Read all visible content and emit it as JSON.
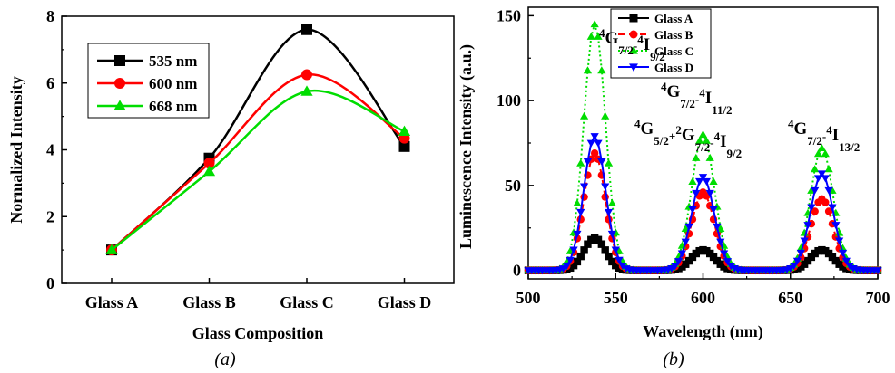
{
  "chart_data": [
    {
      "type": "line",
      "panel_caption": "(a)",
      "title": "",
      "xlabel": "Glass Composition",
      "ylabel": "Normalized Intensity",
      "categories": [
        "Glass A",
        "Glass B",
        "Glass C",
        "Glass D"
      ],
      "ylim": [
        0,
        8
      ],
      "yticks": [
        "0",
        "2",
        "4",
        "6",
        "8"
      ],
      "legend_position": "top-left",
      "grid": false,
      "series": [
        {
          "name": "535 nm",
          "color": "#000000",
          "marker": "square",
          "values": [
            1.0,
            3.75,
            7.6,
            4.1
          ]
        },
        {
          "name": "600 nm",
          "color": "#ff0000",
          "marker": "circle",
          "values": [
            1.0,
            3.6,
            6.25,
            4.35
          ]
        },
        {
          "name": "668 nm",
          "color": "#00dd00",
          "marker": "triangle-up",
          "values": [
            1.0,
            3.35,
            5.75,
            4.55
          ]
        }
      ]
    },
    {
      "type": "line",
      "panel_caption": "(b)",
      "title": "",
      "xlabel": "Wavelength (nm)",
      "ylabel": "Luminescence Intensity (a.u.)",
      "xlim": [
        500,
        700
      ],
      "ylim": [
        -5,
        155
      ],
      "xticks": [
        "500",
        "550",
        "600",
        "650",
        "700"
      ],
      "yticks": [
        "0",
        "50",
        "100",
        "150"
      ],
      "legend_position": "top-center",
      "grid": false,
      "peaks_nm": [
        538,
        600,
        668
      ],
      "series": [
        {
          "name": "Glass A",
          "color": "#000000",
          "marker": "square",
          "line": "solid",
          "peak_heights": [
            19,
            12,
            12
          ]
        },
        {
          "name": "Glass B",
          "color": "#ff0000",
          "marker": "circle",
          "line": "dashed",
          "peak_heights": [
            69,
            46,
            42
          ]
        },
        {
          "name": "Glass C",
          "color": "#00dd00",
          "marker": "triangle-up",
          "line": "dotted",
          "peak_heights": [
            145,
            80,
            72
          ]
        },
        {
          "name": "Glass D",
          "color": "#0000ff",
          "marker": "triangle-down",
          "line": "solid",
          "peak_heights": [
            79,
            55,
            57
          ]
        }
      ],
      "annotations": [
        {
          "text": "4G7/2-4I9/2",
          "near_x": 538,
          "near_y": 140
        },
        {
          "text": "4G7/2-4I11/2",
          "near_x": 600,
          "near_y": 118
        },
        {
          "text": "4G5/2+2G7/2-4I9/2",
          "near_x": 600,
          "near_y": 95
        },
        {
          "text": "4G7/2-4I13/2",
          "near_x": 668,
          "near_y": 95
        }
      ]
    }
  ]
}
